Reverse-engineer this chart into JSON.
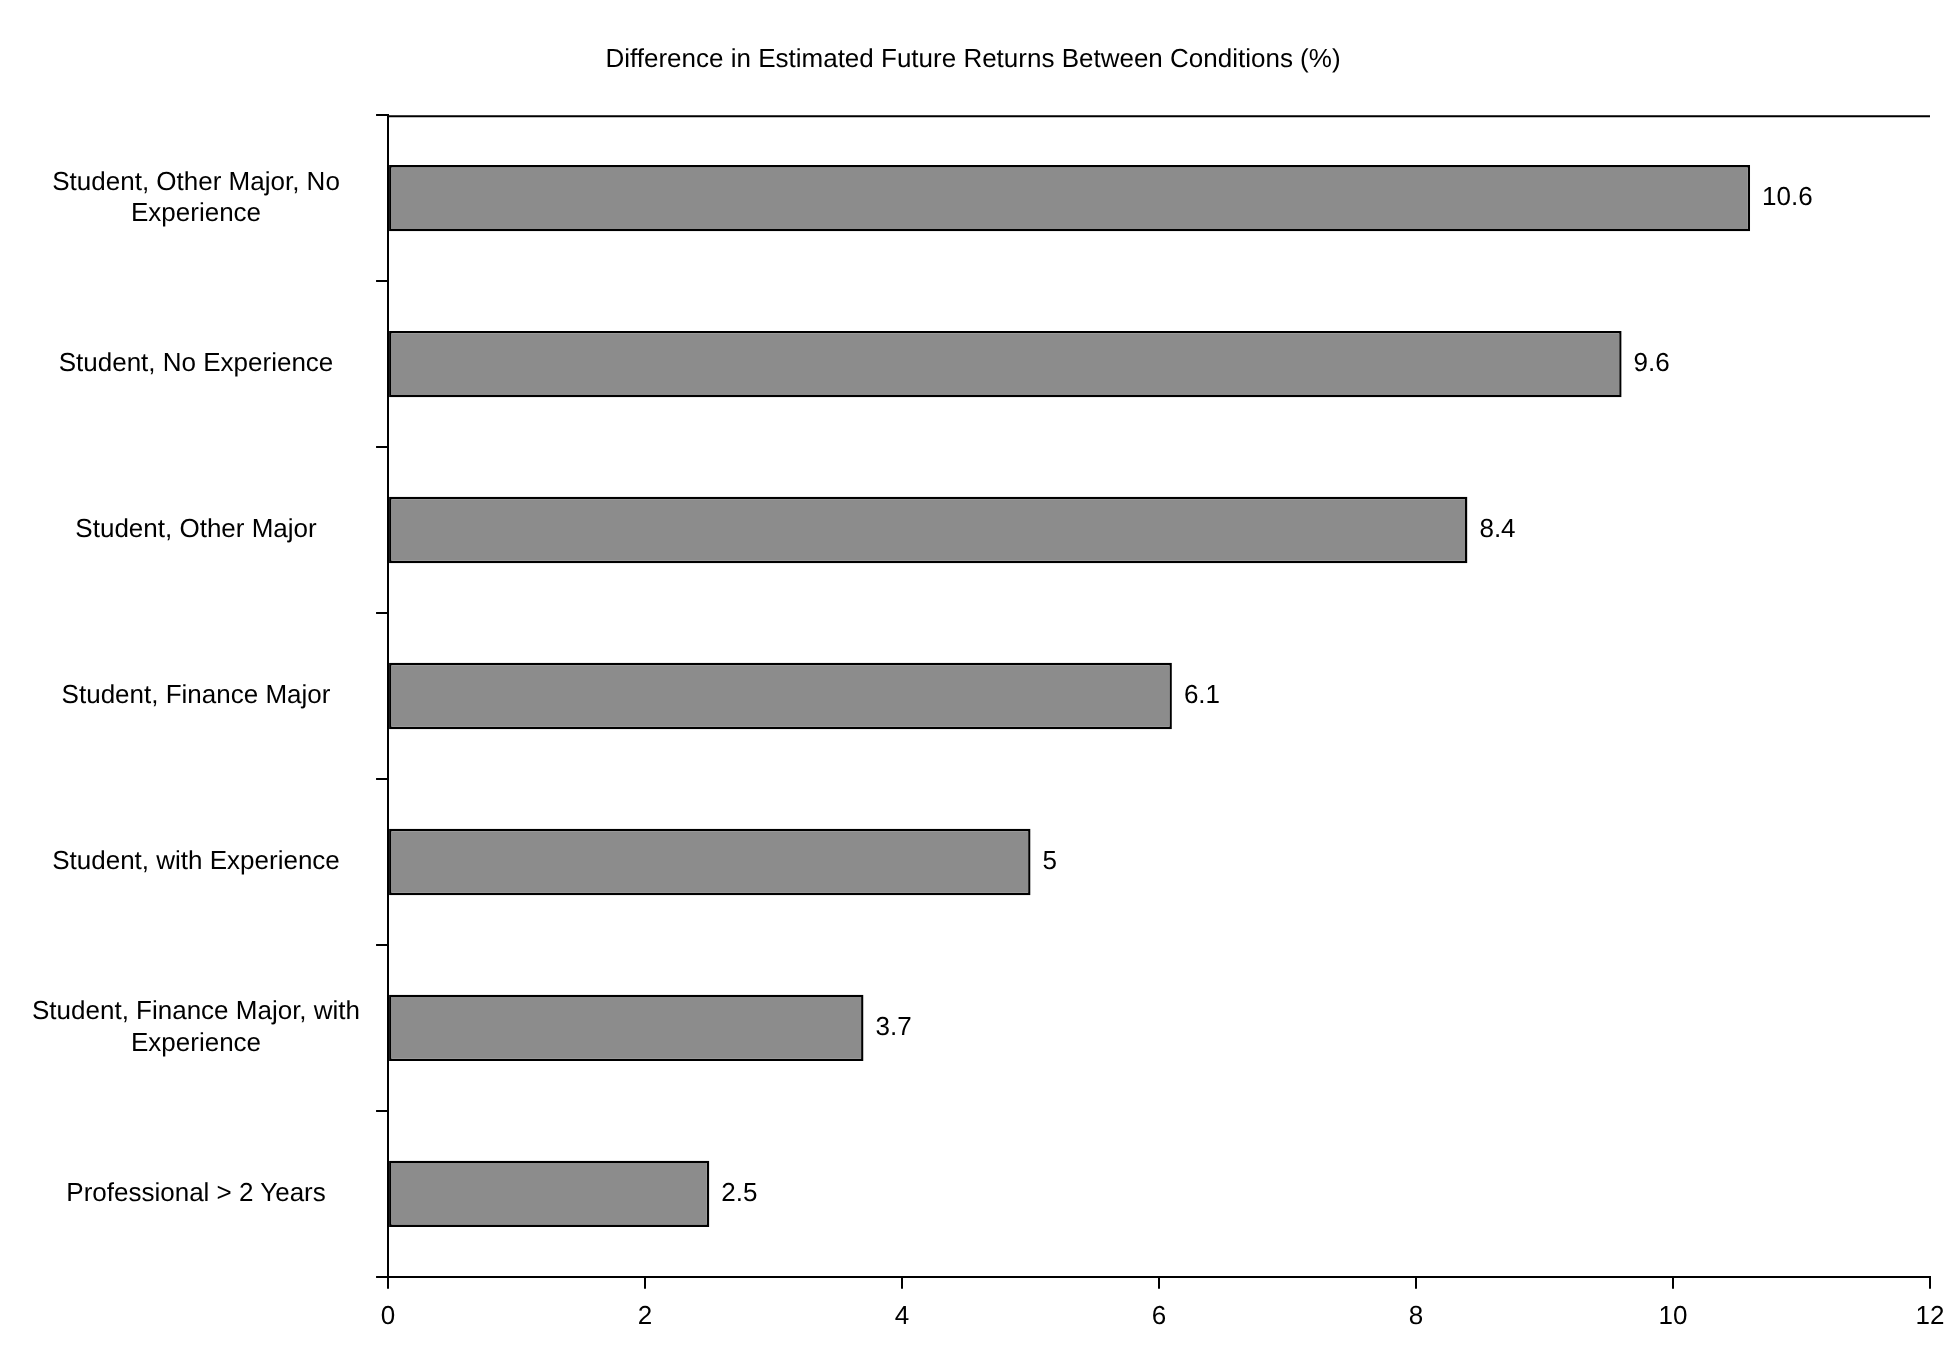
{
  "chart_data": {
    "type": "bar",
    "orientation": "horizontal",
    "title": "Difference in Estimated Future Returns Between Conditions (%)",
    "categories": [
      "Student, Other Major, No Experience",
      "Student, No Experience",
      "Student, Other Major",
      "Student, Finance Major",
      "Student, with Experience",
      "Student, Finance Major, with Experience",
      "Professional > 2 Years"
    ],
    "values": [
      10.6,
      9.6,
      8.4,
      6.1,
      5,
      3.7,
      2.5
    ],
    "color": "#8c8c8c",
    "xlim": [
      0,
      12
    ],
    "xticks": [
      0,
      2,
      4,
      6,
      8,
      10,
      12
    ],
    "data_labels": true,
    "grid": false,
    "legend": false
  }
}
